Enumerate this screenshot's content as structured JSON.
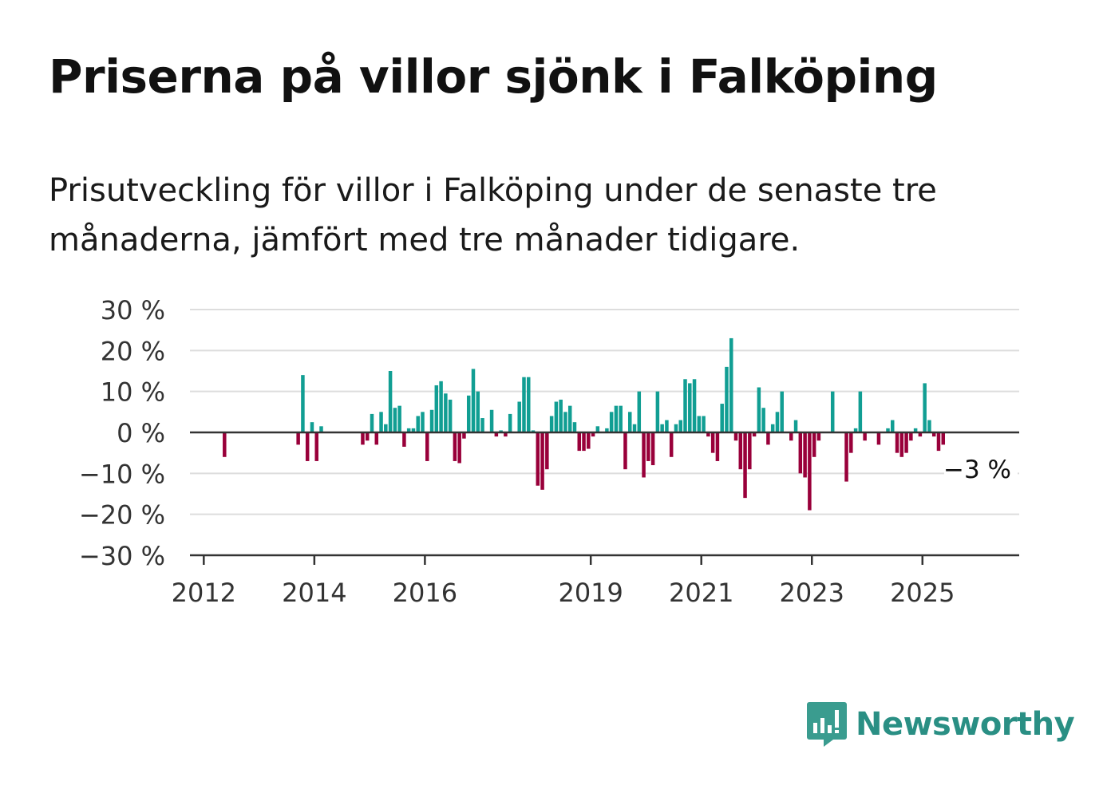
{
  "title": "Priserna på villor sjönk i Falköping",
  "subtitle": "Prisutveckling för villor i Falköping under de senaste tre månaderna, jämfört med tre månader tidigare.",
  "brand": {
    "name": "Newsworthy",
    "icon": "newsworthy-logo-icon",
    "color": "#2a8f84"
  },
  "colors": {
    "positive": "#119e93",
    "negative": "#99003a",
    "grid": "#dddddd",
    "axis": "#333333"
  },
  "chart_data": {
    "type": "bar",
    "title": "Priserna på villor sjönk i Falköping",
    "xlabel": "",
    "ylabel": "",
    "ylim": [
      -30,
      30
    ],
    "yticks": [
      30,
      20,
      10,
      0,
      -10,
      -20,
      -30
    ],
    "ytick_labels": [
      "30 %",
      "20 %",
      "10 %",
      "0 %",
      "−10 %",
      "−20 %",
      "−30 %"
    ],
    "xticks": [
      "2012",
      "2014",
      "2016",
      "2019",
      "2021",
      "2023",
      "2025"
    ],
    "xlim": [
      "2011-10",
      "2026-10"
    ],
    "grid": true,
    "last_value_label": "−3 %",
    "points": [
      [
        "2012-05",
        -6
      ],
      [
        "2013-09",
        -3
      ],
      [
        "2013-10",
        14
      ],
      [
        "2013-11",
        -7
      ],
      [
        "2013-12",
        2.5
      ],
      [
        "2014-01",
        -7
      ],
      [
        "2014-02",
        1.5
      ],
      [
        "2014-11",
        -3
      ],
      [
        "2014-12",
        -2
      ],
      [
        "2015-01",
        4.5
      ],
      [
        "2015-02",
        -3
      ],
      [
        "2015-03",
        5
      ],
      [
        "2015-04",
        2
      ],
      [
        "2015-05",
        15
      ],
      [
        "2015-06",
        6
      ],
      [
        "2015-07",
        6.5
      ],
      [
        "2015-08",
        -3.5
      ],
      [
        "2015-09",
        1
      ],
      [
        "2015-10",
        1
      ],
      [
        "2015-11",
        4
      ],
      [
        "2015-12",
        5
      ],
      [
        "2016-01",
        -7
      ],
      [
        "2016-02",
        5.5
      ],
      [
        "2016-03",
        11.5
      ],
      [
        "2016-04",
        12.5
      ],
      [
        "2016-05",
        9.5
      ],
      [
        "2016-06",
        8
      ],
      [
        "2016-07",
        -7
      ],
      [
        "2016-08",
        -7.5
      ],
      [
        "2016-09",
        -1.5
      ],
      [
        "2016-10",
        9
      ],
      [
        "2016-11",
        15.5
      ],
      [
        "2016-12",
        10
      ],
      [
        "2017-01",
        3.5
      ],
      [
        "2017-03",
        5.5
      ],
      [
        "2017-04",
        -1
      ],
      [
        "2017-05",
        0.5
      ],
      [
        "2017-06",
        -1
      ],
      [
        "2017-07",
        4.5
      ],
      [
        "2017-09",
        7.5
      ],
      [
        "2017-10",
        13.5
      ],
      [
        "2017-11",
        13.5
      ],
      [
        "2017-12",
        0.5
      ],
      [
        "2018-01",
        -13
      ],
      [
        "2018-02",
        -14
      ],
      [
        "2018-03",
        -9
      ],
      [
        "2018-04",
        4
      ],
      [
        "2018-05",
        7.5
      ],
      [
        "2018-06",
        8
      ],
      [
        "2018-07",
        5
      ],
      [
        "2018-08",
        6.5
      ],
      [
        "2018-09",
        2.5
      ],
      [
        "2018-10",
        -4.5
      ],
      [
        "2018-11",
        -4.5
      ],
      [
        "2018-12",
        -4
      ],
      [
        "2019-01",
        -1
      ],
      [
        "2019-02",
        1.5
      ],
      [
        "2019-04",
        1
      ],
      [
        "2019-05",
        5
      ],
      [
        "2019-06",
        6.5
      ],
      [
        "2019-07",
        6.5
      ],
      [
        "2019-08",
        -9
      ],
      [
        "2019-09",
        5
      ],
      [
        "2019-10",
        2
      ],
      [
        "2019-11",
        10
      ],
      [
        "2019-12",
        -11
      ],
      [
        "2020-01",
        -7
      ],
      [
        "2020-02",
        -8
      ],
      [
        "2020-03",
        10
      ],
      [
        "2020-04",
        2
      ],
      [
        "2020-05",
        3
      ],
      [
        "2020-06",
        -6
      ],
      [
        "2020-07",
        2
      ],
      [
        "2020-08",
        3
      ],
      [
        "2020-09",
        13
      ],
      [
        "2020-10",
        12
      ],
      [
        "2020-11",
        13
      ],
      [
        "2020-12",
        4
      ],
      [
        "2021-01",
        4
      ],
      [
        "2021-02",
        -1
      ],
      [
        "2021-03",
        -5
      ],
      [
        "2021-04",
        -7
      ],
      [
        "2021-05",
        7
      ],
      [
        "2021-06",
        16
      ],
      [
        "2021-07",
        23
      ],
      [
        "2021-08",
        -2
      ],
      [
        "2021-09",
        -9
      ],
      [
        "2021-10",
        -16
      ],
      [
        "2021-11",
        -9
      ],
      [
        "2021-12",
        -1
      ],
      [
        "2022-01",
        11
      ],
      [
        "2022-02",
        6
      ],
      [
        "2022-03",
        -3
      ],
      [
        "2022-04",
        2
      ],
      [
        "2022-05",
        5
      ],
      [
        "2022-06",
        10
      ],
      [
        "2022-08",
        -2
      ],
      [
        "2022-09",
        3
      ],
      [
        "2022-10",
        -10
      ],
      [
        "2022-11",
        -11
      ],
      [
        "2022-12",
        -19
      ],
      [
        "2023-01",
        -6
      ],
      [
        "2023-02",
        -2
      ],
      [
        "2023-05",
        10
      ],
      [
        "2023-08",
        -12
      ],
      [
        "2023-09",
        -5
      ],
      [
        "2023-10",
        1
      ],
      [
        "2023-11",
        10
      ],
      [
        "2023-12",
        -2
      ],
      [
        "2024-03",
        -3
      ],
      [
        "2024-05",
        1
      ],
      [
        "2024-06",
        3
      ],
      [
        "2024-07",
        -5
      ],
      [
        "2024-08",
        -6
      ],
      [
        "2024-09",
        -5
      ],
      [
        "2024-10",
        -2
      ],
      [
        "2024-11",
        1
      ],
      [
        "2024-12",
        -1
      ],
      [
        "2025-01",
        12
      ],
      [
        "2025-02",
        3
      ],
      [
        "2025-03",
        -1
      ],
      [
        "2025-04",
        -4.5
      ],
      [
        "2025-05",
        -3
      ]
    ]
  }
}
